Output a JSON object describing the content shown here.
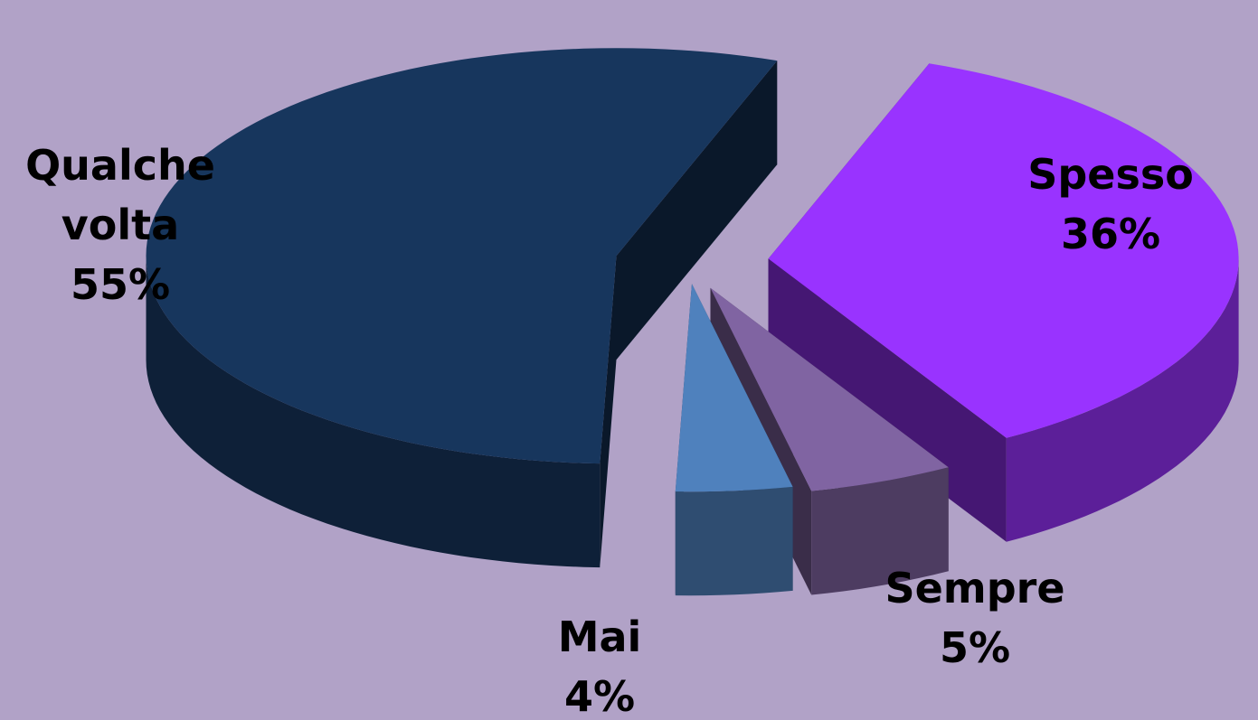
{
  "chart_data": {
    "type": "pie3d",
    "categories": [
      "Spesso",
      "Sempre",
      "Mai",
      "Qualche volta"
    ],
    "values": [
      36,
      5,
      4,
      55
    ],
    "value_labels": [
      "36%",
      "5%",
      "4%",
      "55%"
    ],
    "colors": [
      "#9933ff",
      "#8064a2",
      "#4f81bd",
      "#17365d"
    ]
  }
}
